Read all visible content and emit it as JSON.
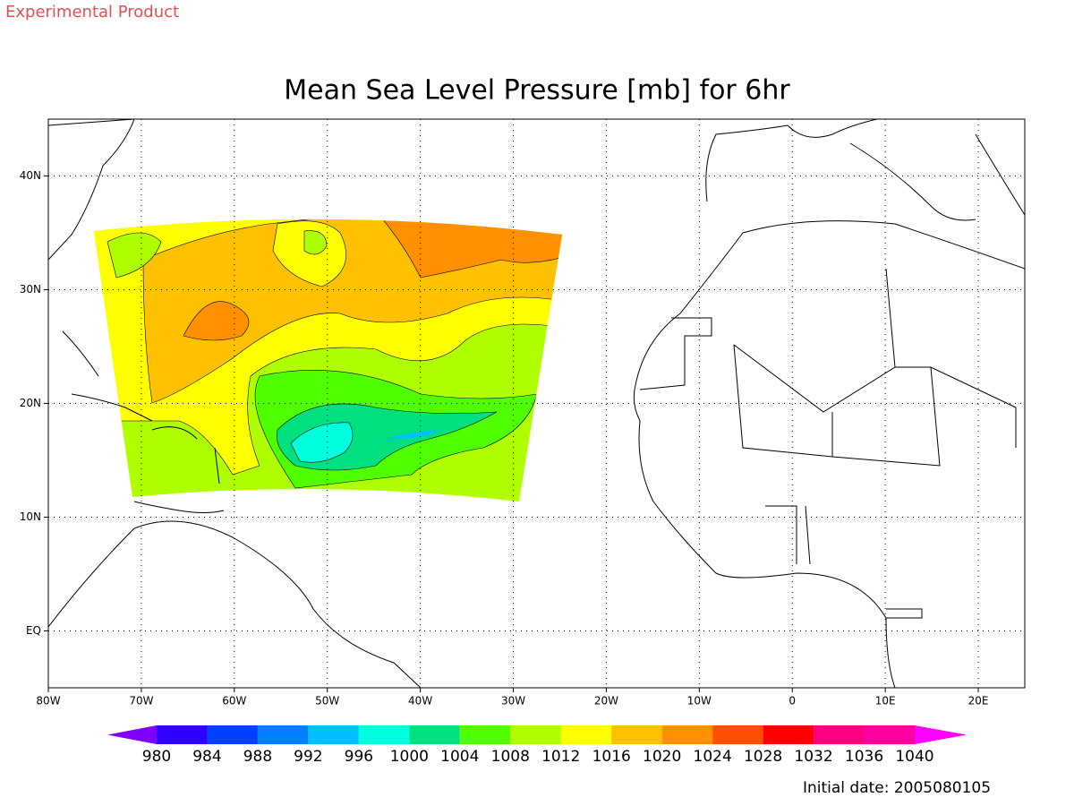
{
  "header": "Experimental Product",
  "chart_data": {
    "type": "map",
    "title": "Mean Sea Level Pressure [mb] for 6hr",
    "xlim": [
      -80,
      25
    ],
    "ylim": [
      -5,
      45
    ],
    "xticks": [
      {
        "value": -80,
        "label": "80W"
      },
      {
        "value": -70,
        "label": "70W"
      },
      {
        "value": -60,
        "label": "60W"
      },
      {
        "value": -50,
        "label": "50W"
      },
      {
        "value": -40,
        "label": "40W"
      },
      {
        "value": -30,
        "label": "30W"
      },
      {
        "value": -20,
        "label": "20W"
      },
      {
        "value": -10,
        "label": "10W"
      },
      0,
      {
        "value": 10,
        "label": "10E"
      },
      {
        "value": 20,
        "label": "20E"
      }
    ],
    "yticks": [
      {
        "value": 0,
        "label": "EQ"
      },
      {
        "value": 10,
        "label": "10N"
      },
      {
        "value": 20,
        "label": "20N"
      },
      {
        "value": 30,
        "label": "30N"
      },
      {
        "value": 40,
        "label": "40N"
      }
    ],
    "grid": true,
    "colorbar": {
      "levels": [
        980,
        984,
        988,
        992,
        996,
        1000,
        1004,
        1008,
        1012,
        1016,
        1020,
        1024,
        1028,
        1032,
        1036,
        1040
      ],
      "colors": [
        "#8000ff",
        "#3000ff",
        "#0040ff",
        "#0080ff",
        "#00c0ff",
        "#00ffdd",
        "#00e080",
        "#50ff00",
        "#b0ff00",
        "#ffff00",
        "#ffc000",
        "#ff9000",
        "#ff5000",
        "#ff0000",
        "#ff0080",
        "#ff00a0",
        "#ff00ff"
      ]
    },
    "footnote": "Initial date: 2005080105"
  }
}
